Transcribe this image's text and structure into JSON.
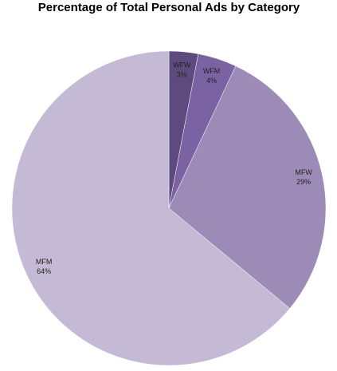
{
  "chart_data": {
    "type": "pie",
    "title": "Percentage of Total Personal Ads by Category",
    "categories": [
      "WFW",
      "WFM",
      "MFW",
      "MFM"
    ],
    "values": [
      3,
      4,
      29,
      64
    ],
    "value_labels": [
      "3%",
      "4%",
      "29%",
      "64%"
    ],
    "colors": [
      "#5e4b7e",
      "#7b62a2",
      "#9c8ab7",
      "#c5bad5"
    ]
  }
}
